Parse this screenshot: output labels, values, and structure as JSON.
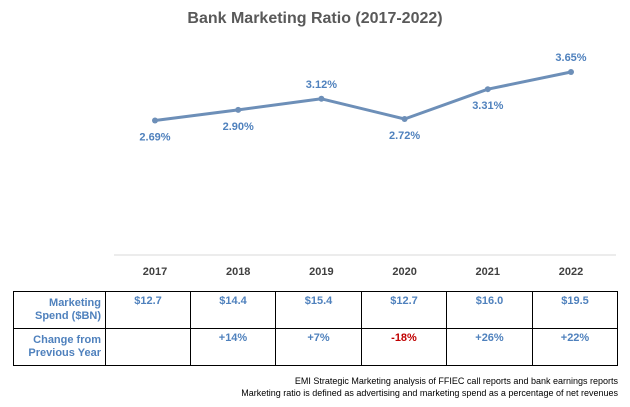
{
  "chart_data": {
    "type": "line",
    "title": "Bank Marketing Ratio (2017-2022)",
    "categories": [
      "2017",
      "2018",
      "2019",
      "2020",
      "2021",
      "2022"
    ],
    "series": [
      {
        "values": [
          2.69,
          2.9,
          3.12,
          2.72,
          3.31,
          3.65
        ],
        "labels": [
          "2.69%",
          "2.90%",
          "3.12%",
          "2.72%",
          "3.31%",
          "3.65%"
        ]
      }
    ],
    "xlabel": "",
    "ylabel": "",
    "ylim": [
      0,
      4
    ],
    "grid": false,
    "legend": "none",
    "colors": {
      "line": "#6d8fb8",
      "labels": "#4f81bd",
      "negative": "#c00000"
    }
  },
  "table": {
    "rows": [
      {
        "header": "Marketing Spend ($BN)",
        "cells": [
          "$12.7",
          "$14.4",
          "$15.4",
          "$12.7",
          "$16.0",
          "$19.5"
        ]
      },
      {
        "header": "Change from Previous Year",
        "cells": [
          "",
          "+14%",
          "+7%",
          "-18%",
          "+26%",
          "+22%"
        ]
      }
    ]
  },
  "footnotes": [
    "EMI Strategic Marketing analysis of FFIEC call reports and bank earnings reports",
    "Marketing ratio is defined as advertising and marketing spend as a percentage of net revenues"
  ]
}
